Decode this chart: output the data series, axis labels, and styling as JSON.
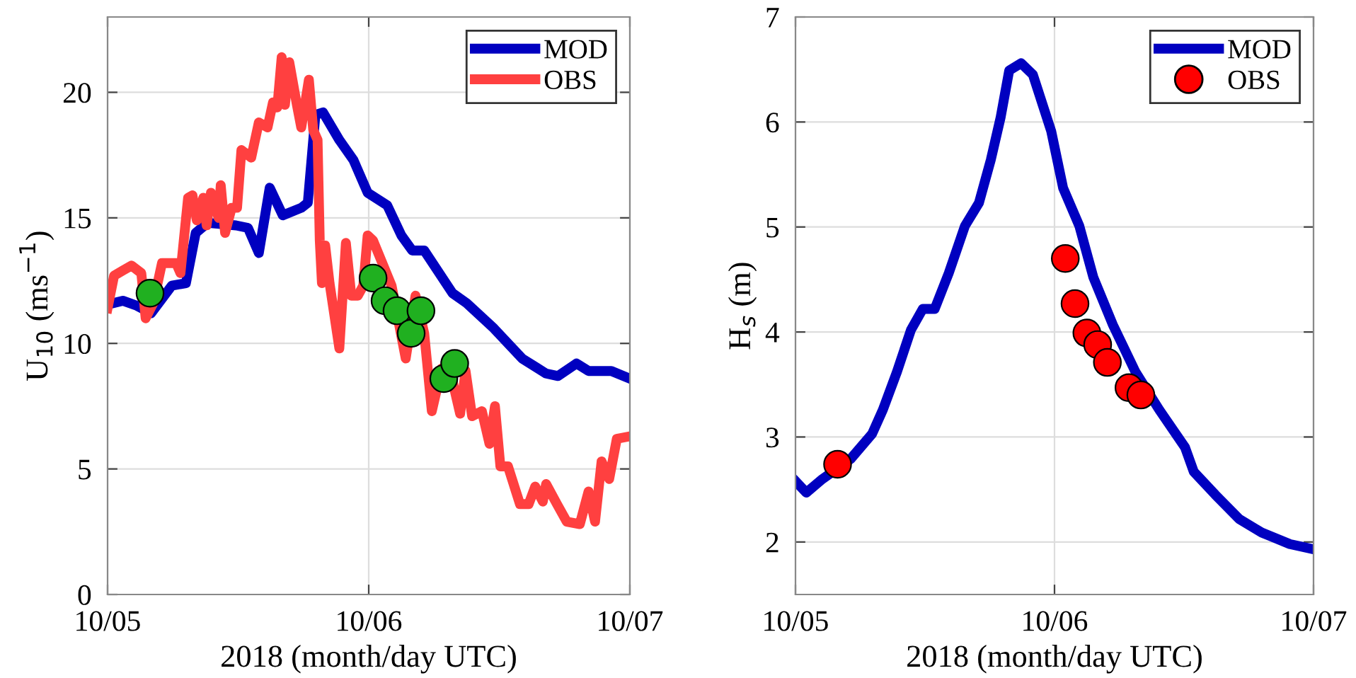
{
  "chart_data": [
    {
      "type": "line",
      "xlabel": "2018 (month/day UTC)",
      "ylabel": "U$_{10}$ (ms$^{−1}$)",
      "xlim": [
        "2018-10-05",
        "2018-10-07"
      ],
      "xticks": [
        {
          "value": "2018-10-05",
          "label": "10/05"
        },
        {
          "value": "2018-10-06",
          "label": "10/06"
        },
        {
          "value": "2018-10-07",
          "label": "10/07"
        }
      ],
      "ylim": [
        0,
        23
      ],
      "yticks": [
        0,
        5,
        10,
        15,
        20
      ],
      "grid": true,
      "legend": "top right",
      "line_style": "solid",
      "series": [
        {
          "name": "MOD",
          "color": "#0000c0",
          "x": [
            "2018-10-05T00:00",
            "2018-10-05T01:24",
            "2018-10-05T02:42",
            "2018-10-05T04:00",
            "2018-10-05T05:54",
            "2018-10-05T07:12",
            "2018-10-05T08:06",
            "2018-10-05T09:12",
            "2018-10-05T11:48",
            "2018-10-05T12:54",
            "2018-10-05T13:54",
            "2018-10-05T14:54",
            "2018-10-05T16:06",
            "2018-10-05T17:48",
            "2018-10-05T18:24",
            "2018-10-05T19:06",
            "2018-10-05T19:48",
            "2018-10-05T21:18",
            "2018-10-05T22:36",
            "2018-10-05T23:54",
            "2018-10-06T01:42",
            "2018-10-06T03:00",
            "2018-10-06T04:00",
            "2018-10-06T05:06",
            "2018-10-06T07:42",
            "2018-10-06T09:00",
            "2018-10-06T11:30",
            "2018-10-06T14:06",
            "2018-10-06T16:18",
            "2018-10-06T17:24",
            "2018-10-06T19:06",
            "2018-10-06T20:12",
            "2018-10-06T22:18",
            "2018-10-07T00:00"
          ],
          "values": [
            11.55,
            11.7,
            11.5,
            11.2,
            12.3,
            12.4,
            14.4,
            14.8,
            14.7,
            14.6,
            13.6,
            16.2,
            15.1,
            15.4,
            15.6,
            19.1,
            19.2,
            18.1,
            17.3,
            16.0,
            15.5,
            14.3,
            13.7,
            13.7,
            12.0,
            11.6,
            10.6,
            9.4,
            8.8,
            8.7,
            9.2,
            8.9,
            8.9,
            8.6
          ]
        },
        {
          "name": "OBS",
          "color": "#ff4040",
          "x": [
            "2018-10-05T00:00",
            "2018-10-05T00:36",
            "2018-10-05T01:24",
            "2018-10-05T02:12",
            "2018-10-05T03:06",
            "2018-10-05T03:30",
            "2018-10-05T04:12",
            "2018-10-05T05:00",
            "2018-10-05T06:18",
            "2018-10-05T06:42",
            "2018-10-05T07:24",
            "2018-10-05T07:48",
            "2018-10-05T08:12",
            "2018-10-05T08:48",
            "2018-10-05T09:06",
            "2018-10-05T09:30",
            "2018-10-05T10:12",
            "2018-10-05T10:24",
            "2018-10-05T10:48",
            "2018-10-05T11:24",
            "2018-10-05T11:54",
            "2018-10-05T12:18",
            "2018-10-05T13:12",
            "2018-10-05T13:54",
            "2018-10-05T14:42",
            "2018-10-05T15:12",
            "2018-10-05T15:36",
            "2018-10-05T16:00",
            "2018-10-05T16:18",
            "2018-10-05T16:42",
            "2018-10-05T17:24",
            "2018-10-05T17:48",
            "2018-10-05T18:30",
            "2018-10-05T18:54",
            "2018-10-05T19:18",
            "2018-10-05T19:30",
            "2018-10-05T19:42",
            "2018-10-05T20:00",
            "2018-10-05T20:24",
            "2018-10-05T21:18",
            "2018-10-05T21:54",
            "2018-10-05T22:24",
            "2018-10-05T23:00",
            "2018-10-05T23:30",
            "2018-10-05T23:54",
            "2018-10-06T00:24",
            "2018-10-06T02:06",
            "2018-10-06T03:24",
            "2018-10-06T04:18",
            "2018-10-06T05:06",
            "2018-10-06T05:48",
            "2018-10-06T06:42",
            "2018-10-06T07:42",
            "2018-10-06T08:24",
            "2018-10-06T08:54",
            "2018-10-06T09:30",
            "2018-10-06T10:24",
            "2018-10-06T11:06",
            "2018-10-06T11:36",
            "2018-10-06T12:06",
            "2018-10-06T12:48",
            "2018-10-06T13:54",
            "2018-10-06T14:42",
            "2018-10-06T15:18",
            "2018-10-06T16:00",
            "2018-10-06T16:18",
            "2018-10-06T17:18",
            "2018-10-06T18:12",
            "2018-10-06T19:24",
            "2018-10-06T20:12",
            "2018-10-06T20:48",
            "2018-10-06T21:24",
            "2018-10-06T22:06",
            "2018-10-06T22:48",
            "2018-10-07T00:00"
          ],
          "values": [
            11.4,
            12.7,
            12.9,
            13.1,
            12.8,
            11.0,
            11.6,
            13.2,
            13.2,
            12.8,
            15.8,
            15.9,
            14.9,
            15.8,
            14.7,
            16.0,
            15.0,
            16.3,
            14.4,
            15.4,
            15.4,
            17.7,
            17.4,
            18.8,
            18.6,
            19.6,
            19.4,
            21.4,
            19.5,
            21.2,
            19.5,
            18.6,
            20.5,
            18.5,
            18.1,
            14.1,
            12.4,
            13.9,
            12.4,
            9.8,
            14.0,
            11.9,
            11.9,
            12.3,
            14.3,
            14.1,
            12.3,
            9.4,
            11.9,
            10.4,
            7.3,
            9.0,
            8.5,
            7.2,
            8.9,
            7.1,
            7.3,
            6.0,
            7.5,
            5.1,
            5.1,
            3.6,
            3.6,
            4.3,
            3.7,
            4.4,
            3.6,
            2.9,
            2.8,
            4.1,
            2.9,
            5.3,
            4.6,
            6.2,
            6.3
          ]
        },
        {
          "type": "scatter",
          "color": "#20b020",
          "marker": "circle",
          "x": [
            "2018-10-05T03:54",
            "2018-10-06T00:24",
            "2018-10-06T01:30",
            "2018-10-06T02:36",
            "2018-10-06T03:54",
            "2018-10-06T04:48",
            "2018-10-06T06:54",
            "2018-10-06T07:54"
          ],
          "values": [
            12.0,
            12.6,
            11.7,
            11.3,
            10.4,
            11.3,
            8.6,
            9.2
          ]
        }
      ]
    },
    {
      "type": "line",
      "xlabel": "2018 (month/day UTC)",
      "ylabel": "H$_{s}$ (m)",
      "xlim": [
        "2018-10-05",
        "2018-10-07"
      ],
      "xticks": [
        {
          "value": "2018-10-05",
          "label": "10/05"
        },
        {
          "value": "2018-10-06",
          "label": "10/06"
        },
        {
          "value": "2018-10-07",
          "label": "10/07"
        }
      ],
      "ylim": [
        1.5,
        7
      ],
      "yticks": [
        2,
        3,
        4,
        5,
        6,
        7
      ],
      "grid": true,
      "legend": "top right",
      "line_style": "solid",
      "series": [
        {
          "name": "MOD",
          "color": "#0000c0",
          "x": [
            "2018-10-05T00:00",
            "2018-10-05T01:00",
            "2018-10-05T02:30",
            "2018-10-05T05:06",
            "2018-10-05T07:06",
            "2018-10-05T08:06",
            "2018-10-05T09:24",
            "2018-10-05T10:42",
            "2018-10-05T11:48",
            "2018-10-05T12:54",
            "2018-10-05T14:12",
            "2018-10-05T15:42",
            "2018-10-05T17:00",
            "2018-10-05T18:06",
            "2018-10-05T19:00",
            "2018-10-05T19:48",
            "2018-10-05T20:54",
            "2018-10-05T22:00",
            "2018-10-05T23:42",
            "2018-10-06T00:48",
            "2018-10-06T02:18",
            "2018-10-06T03:36",
            "2018-10-06T05:24",
            "2018-10-06T07:30",
            "2018-10-06T09:42",
            "2018-10-06T12:06",
            "2018-10-06T12:54",
            "2018-10-06T14:54",
            "2018-10-06T17:06",
            "2018-10-06T19:12",
            "2018-10-06T21:48",
            "2018-10-07T00:00"
          ],
          "values": [
            2.58,
            2.47,
            2.6,
            2.79,
            3.03,
            3.26,
            3.62,
            4.02,
            4.22,
            4.22,
            4.56,
            5.01,
            5.23,
            5.64,
            6.04,
            6.49,
            6.56,
            6.45,
            5.91,
            5.37,
            5.01,
            4.52,
            4.07,
            3.62,
            3.26,
            2.9,
            2.67,
            2.45,
            2.22,
            2.09,
            1.98,
            1.93
          ]
        },
        {
          "name": "OBS",
          "type": "scatter",
          "color": "#ff0000",
          "marker": "circle",
          "x": [
            "2018-10-05T03:54",
            "2018-10-06T01:00",
            "2018-10-06T01:54",
            "2018-10-06T03:00",
            "2018-10-06T04:00",
            "2018-10-06T04:54",
            "2018-10-06T06:54",
            "2018-10-06T08:00"
          ],
          "values": [
            2.74,
            4.7,
            4.27,
            3.99,
            3.88,
            3.71,
            3.47,
            3.4
          ]
        }
      ]
    }
  ]
}
